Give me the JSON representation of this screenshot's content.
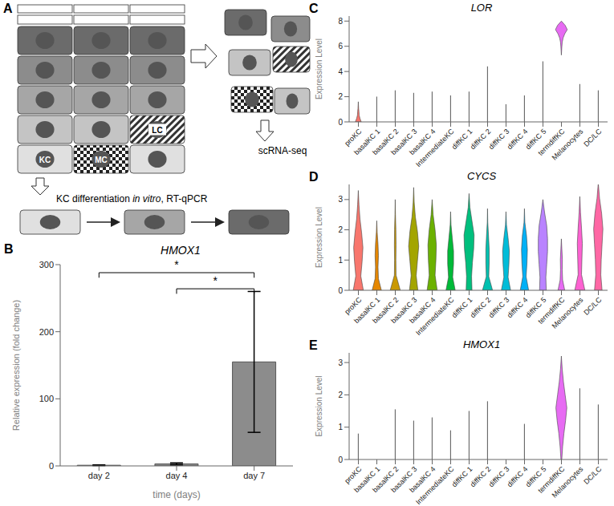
{
  "diagram": {
    "panel": "A",
    "kc_label": "KC",
    "mc_label": "MC",
    "lc_label": "LC",
    "scrna_label": "scRNA-seq",
    "diff_label": [
      "KC differentiation ",
      "in vitro",
      ", RT-qPCR"
    ]
  },
  "chart_data": [
    {
      "panel": "B",
      "type": "bar",
      "title": "HMOX1",
      "categories": [
        "day 2",
        "day 4",
        "day 7"
      ],
      "values": [
        1,
        3,
        155
      ],
      "errors": [
        0.5,
        1.5,
        105
      ],
      "color": "#8c8c8c",
      "ylim": [
        0,
        300
      ],
      "yticks": [
        0,
        100,
        200,
        300
      ],
      "x_label": "time (days)",
      "y_label": "Relative expression (fold change)",
      "annotations": [
        {
          "from": "day 2",
          "to": "day 7",
          "text": "*"
        },
        {
          "from": "day 4",
          "to": "day 7",
          "text": "*"
        }
      ]
    },
    {
      "panel": "C",
      "type": "violin",
      "title": "LOR",
      "y_label": "Expression Level",
      "categories": [
        "proKC",
        "basalKC 1",
        "basalKC 2",
        "basalKC 3",
        "basalKC 4",
        "IntermediateKC",
        "diffKC 1",
        "diffKC 2",
        "diffKC 3",
        "diffKC 4",
        "diffKC 5",
        "termdiffKC",
        "Melanocytes",
        "DC/LC"
      ],
      "colors": [
        "#F8766D",
        "#E58700",
        "#C99800",
        "#A3A500",
        "#6BB100",
        "#00BA38",
        "#00BF7D",
        "#00C0AF",
        "#00BCD8",
        "#00B0F6",
        "#B983FF",
        "#E76BF3",
        "#FD61D1",
        "#FF67A4"
      ],
      "ylim": [
        0,
        8.4
      ],
      "yticks": [
        0,
        2,
        4,
        6,
        8
      ],
      "violins": [
        {
          "min": 0,
          "max": 1.6,
          "density": [
            0.35,
            0.2,
            0.1,
            0.08,
            0.04,
            0.02,
            0
          ]
        },
        {
          "min": 0,
          "max": 2.0,
          "density": [
            0,
            0
          ]
        },
        {
          "min": 0,
          "max": 2.5,
          "density": [
            0,
            0
          ]
        },
        {
          "min": 0,
          "max": 2.3,
          "density": [
            0,
            0
          ]
        },
        {
          "min": 0,
          "max": 2.4,
          "density": [
            0,
            0
          ]
        },
        {
          "min": 0,
          "max": 2.1,
          "density": [
            0,
            0
          ]
        },
        {
          "min": 0,
          "max": 2.4,
          "density": [
            0,
            0
          ]
        },
        {
          "min": 0,
          "max": 4.4,
          "density": [
            0,
            0
          ]
        },
        {
          "min": 0,
          "max": 1.4,
          "density": [
            0,
            0
          ]
        },
        {
          "min": 0,
          "max": 2.1,
          "density": [
            0,
            0
          ]
        },
        {
          "min": 0,
          "max": 4.8,
          "density": [
            0,
            0
          ]
        },
        {
          "min": 5.3,
          "max": 8.0,
          "density": [
            0,
            0.03,
            0.06,
            0.1,
            0.2,
            0.4,
            0.7,
            0.45,
            0
          ]
        },
        {
          "min": 0,
          "max": 3.0,
          "density": [
            0,
            0
          ]
        },
        {
          "min": 0,
          "max": 2.5,
          "density": [
            0,
            0
          ]
        }
      ]
    },
    {
      "panel": "D",
      "type": "violin",
      "title": "CYCS",
      "y_label": "Expression Level",
      "categories": [
        "proKC",
        "basalKC 1",
        "basalKC 2",
        "basalKC 3",
        "basalKC 4",
        "IntermediateKC",
        "diffKC 1",
        "diffKC 2",
        "diffKC 3",
        "diffKC 4",
        "diffKC 5",
        "termdiffKC",
        "Melanocytes",
        "DC/LC"
      ],
      "colors": [
        "#F8766D",
        "#E58700",
        "#C99800",
        "#A3A500",
        "#6BB100",
        "#00BA38",
        "#00BF7D",
        "#00C0AF",
        "#00BCD8",
        "#00B0F6",
        "#B983FF",
        "#E76BF3",
        "#FD61D1",
        "#FF67A4"
      ],
      "ylim": [
        0,
        3.5
      ],
      "yticks": [
        0,
        1,
        2,
        3
      ],
      "violins": [
        {
          "min": 0,
          "max": 3.3,
          "density": [
            0.6,
            0.3,
            0.45,
            0.55,
            0.4,
            0.2,
            0.08,
            0
          ]
        },
        {
          "min": 0,
          "max": 2.3,
          "density": [
            0.55,
            0.2,
            0.15,
            0.2,
            0.15,
            0.05,
            0
          ]
        },
        {
          "min": 0,
          "max": 3.0,
          "density": [
            0.6,
            0.1,
            0.08,
            0.1,
            0.08,
            0.03,
            0
          ]
        },
        {
          "min": 0,
          "max": 3.4,
          "density": [
            0.5,
            0.3,
            0.45,
            0.6,
            0.45,
            0.2,
            0.06,
            0
          ]
        },
        {
          "min": 0,
          "max": 3.0,
          "density": [
            0.6,
            0.35,
            0.45,
            0.5,
            0.35,
            0.12,
            0
          ]
        },
        {
          "min": 0,
          "max": 2.6,
          "density": [
            0.55,
            0.25,
            0.35,
            0.35,
            0.2,
            0.05,
            0
          ]
        },
        {
          "min": 0,
          "max": 3.2,
          "density": [
            0.35,
            0.3,
            0.4,
            0.55,
            0.6,
            0.35,
            0.1,
            0
          ]
        },
        {
          "min": 0,
          "max": 2.7,
          "density": [
            0.6,
            0.15,
            0.2,
            0.2,
            0.12,
            0.03,
            0
          ]
        },
        {
          "min": 0,
          "max": 2.6,
          "density": [
            0.55,
            0.25,
            0.35,
            0.4,
            0.25,
            0.06,
            0
          ]
        },
        {
          "min": 0,
          "max": 2.7,
          "density": [
            0.5,
            0.2,
            0.3,
            0.35,
            0.25,
            0.05,
            0
          ]
        },
        {
          "min": 0,
          "max": 3.0,
          "density": [
            0.4,
            0.35,
            0.45,
            0.55,
            0.55,
            0.45,
            0.2,
            0
          ]
        },
        {
          "min": 0,
          "max": 1.7,
          "density": [
            0.4,
            0.15,
            0.1,
            0.12,
            0.06,
            0
          ]
        },
        {
          "min": 0,
          "max": 3.1,
          "density": [
            0.6,
            0.2,
            0.25,
            0.3,
            0.2,
            0.08,
            0
          ]
        },
        {
          "min": 0,
          "max": 3.55,
          "density": [
            0.45,
            0.3,
            0.35,
            0.45,
            0.55,
            0.4,
            0.15,
            0
          ]
        }
      ]
    },
    {
      "panel": "E",
      "type": "violin",
      "title": "HMOX1",
      "y_label": "Expression Level",
      "categories": [
        "proKC",
        "basalKC 1",
        "basalKC 2",
        "basalKC 3",
        "basalKC 4",
        "IntermediateKC",
        "diffKC 1",
        "diffKC 2",
        "diffKC 3",
        "diffKC 4",
        "diffKC 5",
        "termdiffKC",
        "Melanocytes",
        "DC/LC"
      ],
      "colors": [
        "#F8766D",
        "#E58700",
        "#C99800",
        "#A3A500",
        "#6BB100",
        "#00BA38",
        "#00BF7D",
        "#00C0AF",
        "#00BCD8",
        "#00B0F6",
        "#B983FF",
        "#E76BF3",
        "#FD61D1",
        "#FF67A4"
      ],
      "ylim": [
        0,
        3.3
      ],
      "yticks": [
        0,
        1,
        2,
        3
      ],
      "violins": [
        {
          "min": 0,
          "max": 0.8,
          "density": [
            0,
            0
          ]
        },
        {
          "min": 0,
          "max": 0,
          "density": [
            0,
            0
          ]
        },
        {
          "min": 0,
          "max": 1.55,
          "density": [
            0,
            0
          ]
        },
        {
          "min": 0,
          "max": 1.2,
          "density": [
            0,
            0
          ]
        },
        {
          "min": 0,
          "max": 1.3,
          "density": [
            0,
            0
          ]
        },
        {
          "min": 0,
          "max": 0.9,
          "density": [
            0,
            0
          ]
        },
        {
          "min": 0,
          "max": 1.5,
          "density": [
            0,
            0
          ]
        },
        {
          "min": 0,
          "max": 1.8,
          "density": [
            0,
            0
          ]
        },
        {
          "min": 0,
          "max": 0,
          "density": [
            0,
            0
          ]
        },
        {
          "min": 0,
          "max": 1.1,
          "density": [
            0,
            0
          ]
        },
        {
          "min": 0,
          "max": 0,
          "density": [
            0,
            0
          ]
        },
        {
          "min": 0,
          "max": 3.2,
          "density": [
            0.05,
            0.15,
            0.3,
            0.5,
            0.65,
            0.45,
            0.25,
            0.1,
            0
          ]
        },
        {
          "min": 0,
          "max": 2.2,
          "density": [
            0,
            0
          ]
        },
        {
          "min": 0,
          "max": 1.7,
          "density": [
            0,
            0
          ]
        }
      ]
    }
  ]
}
